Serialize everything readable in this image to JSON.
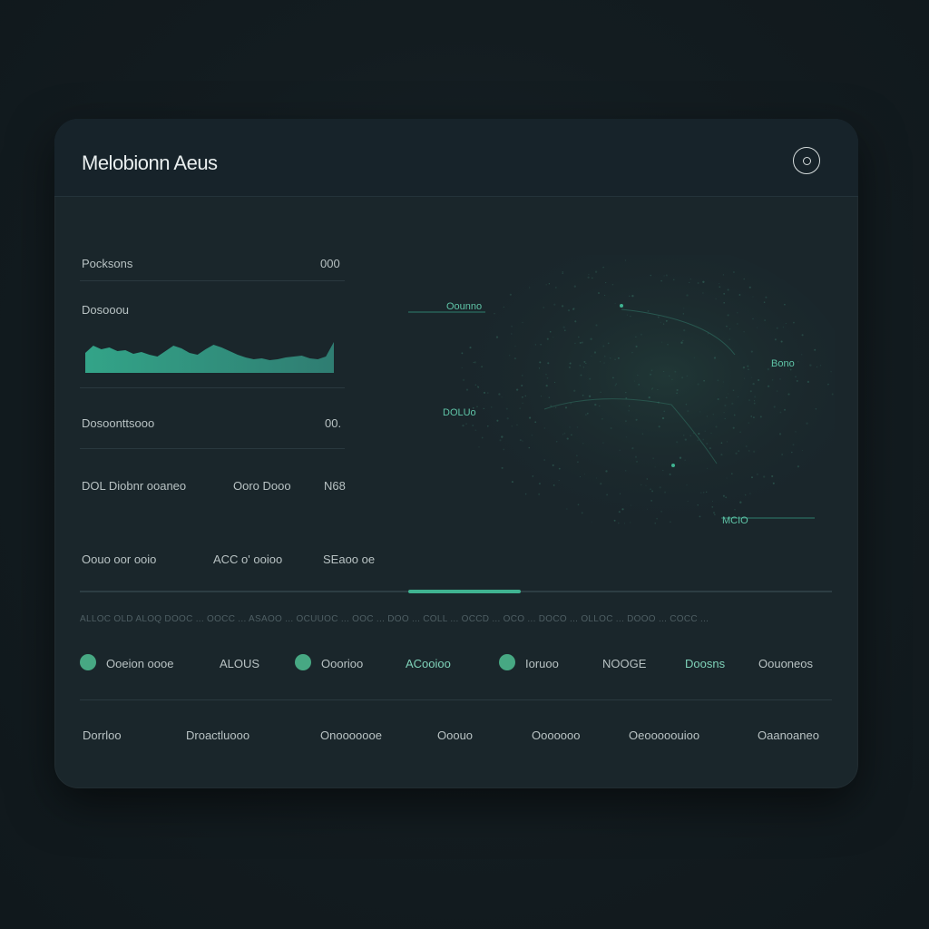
{
  "header": {
    "title": "Melobionn Aeus",
    "menu_icon": "circle-dot-icon"
  },
  "left_panel": {
    "row1": {
      "label": "Pocksons",
      "value": "000"
    },
    "row2": {
      "label": "Dosooou"
    },
    "sparkline_values": [
      22,
      30,
      26,
      28,
      24,
      25,
      21,
      23,
      20,
      18,
      24,
      30,
      27,
      22,
      20,
      26,
      31,
      28,
      24,
      20,
      17,
      15,
      16,
      14,
      15,
      17,
      18,
      19,
      16,
      15,
      18,
      34
    ],
    "row3": {
      "label": "Dosoonttsooo",
      "value": "00."
    },
    "row4": {
      "label": "DOL Diobnr ooaneo",
      "mid": "Ooro Dooo",
      "value": "N68"
    },
    "row5": {
      "label": "Oouo oor ooio",
      "mid": "ACC o' ooioo",
      "value": "SEaoo oe"
    }
  },
  "map": {
    "labels": [
      "Oounno",
      "Bono",
      "DOLUo",
      "MCIO"
    ]
  },
  "ticker_text": "ALLOC OLD ALOQ DOOC ... OOCC ... ASAOO ... OCUUOC ... OOC ... DOO ... COLL ... OCCD ... OCO ... DOCO ... OLLOC ... DOOO ... COCC ...",
  "legend": [
    {
      "radio_label": "Ooeion oooe",
      "value": "ALOUS"
    },
    {
      "radio_label": "Ooorioo",
      "value": "ACooioo"
    },
    {
      "radio_label": "Ioruoo",
      "value": "NOOGE",
      "extra": "Doosns"
    }
  ],
  "legend_last": "Oouoneos",
  "footer_tabs": [
    "Dorrloo",
    "Droactluooo",
    "Onooooooe",
    "Ooouo",
    "Ooooooo",
    "Oeooooouioo",
    "Oaanoaneo"
  ],
  "colors": {
    "accent": "#3fb391",
    "radio": "#47a883",
    "background": "#131c20",
    "card": "#1a262b"
  }
}
